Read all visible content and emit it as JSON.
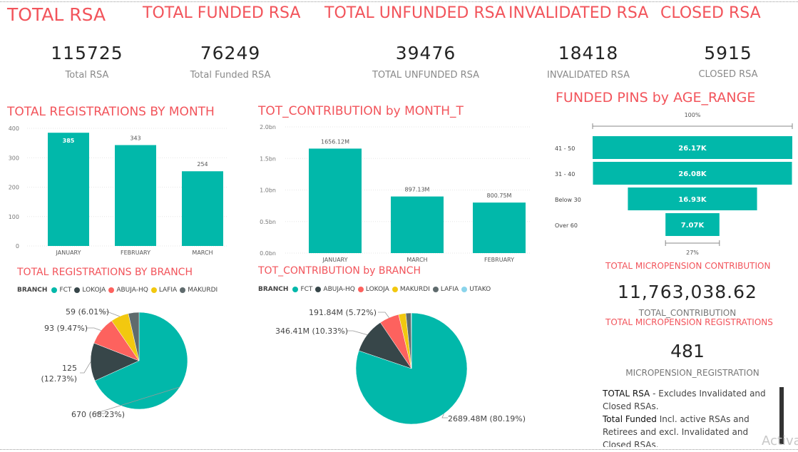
{
  "headers": {
    "total_rsa": "TOTAL RSA",
    "total_funded": "TOTAL FUNDED RSA",
    "total_unfunded": "TOTAL UNFUNDED RSA",
    "invalidated": "INVALIDATED RSA",
    "closed": "CLOSED RSA"
  },
  "kpis": [
    {
      "value": "115725",
      "label": "Total RSA"
    },
    {
      "value": "76249",
      "label": "Total Funded RSA"
    },
    {
      "value": "39476",
      "label": "TOTAL UNFUNDED RSA"
    },
    {
      "value": "18418",
      "label": "INVALIDATED RSA"
    },
    {
      "value": "5915",
      "label": "CLOSED RSA"
    }
  ],
  "micro": {
    "contribution_title": "TOTAL MICROPENSION CONTRIBUTION",
    "contribution_value": "11,763,038.62",
    "contribution_label": "TOTAL_CONTRIBUTION",
    "registrations_title": "TOTAL MICROPENSION REGISTRATIONS",
    "registrations_value": "481",
    "registrations_label": "MICROPENSION_REGISTRATION"
  },
  "notes": {
    "n1_bold": "TOTAL RSA",
    "n1_text": " - Excludes Invalidated and Closed RSAs.",
    "n2_bold": "Total Funded",
    "n2_text": " Incl. active RSAs and Retirees and excl.  Invalidated and Closed RSAs."
  },
  "watermark": "Activa",
  "colors": {
    "teal": "#01b8aa",
    "dark": "#374649",
    "red": "#fd625e",
    "yellow": "#f2c80f",
    "gray": "#5f6b6d",
    "lightblue": "#8ad4eb",
    "title": "#f2545b"
  },
  "chart_data": [
    {
      "type": "bar",
      "title": "TOTAL REGISTRATIONS BY MONTH",
      "categories": [
        "JANUARY",
        "FEBRUARY",
        "MARCH"
      ],
      "values": [
        385,
        343,
        254
      ],
      "data_labels": [
        "385",
        "343",
        "254"
      ],
      "yticks": [
        "0",
        "100",
        "200",
        "300",
        "400"
      ],
      "ylim": [
        0,
        400
      ],
      "grid": true
    },
    {
      "type": "bar",
      "title": "TOT_CONTRIBUTION by MONTH_T",
      "categories": [
        "JANUARY",
        "MARCH",
        "FEBRUARY"
      ],
      "values": [
        1656.12,
        897.13,
        800.75
      ],
      "data_labels": [
        "1656.12M",
        "897.13M",
        "800.75M"
      ],
      "yticks": [
        "0.0bn",
        "0.5bn",
        "1.0bn",
        "1.5bn",
        "2.0bn"
      ],
      "ylim": [
        0,
        2000
      ],
      "grid": true
    },
    {
      "type": "bar",
      "orientation": "funnel",
      "title": "FUNDED PINS  by AGE_RANGE",
      "categories": [
        "41 - 50",
        "31 - 40",
        "Below 30",
        "Over 60"
      ],
      "values": [
        26.17,
        26.08,
        16.93,
        7.07
      ],
      "data_labels": [
        "26.17K",
        "26.08K",
        "16.93K",
        "7.07K"
      ],
      "top_label": "100%",
      "bottom_label": "27%"
    },
    {
      "type": "pie",
      "title": "TOTAL REGISTRATIONS BY BRANCH",
      "legend_title": "BRANCH",
      "legend": [
        "FCT",
        "LOKOJA",
        "ABUJA-HQ",
        "LAFIA",
        "MAKURDI"
      ],
      "legend_colors": [
        "#01b8aa",
        "#374649",
        "#fd625e",
        "#f2c80f",
        "#5f6b6d"
      ],
      "slices": [
        {
          "name": "FCT",
          "value": 670,
          "label": "670 (68.23%)",
          "color": "#01b8aa"
        },
        {
          "name": "LOKOJA",
          "value": 125,
          "label": "125 (12.73%)",
          "color": "#374649"
        },
        {
          "name": "ABUJA-HQ",
          "value": 93,
          "label": "93 (9.47%)",
          "color": "#fd625e"
        },
        {
          "name": "LAFIA",
          "value": 59,
          "label": "59 (6.01%)",
          "color": "#f2c80f"
        },
        {
          "name": "MAKURDI",
          "value": 35,
          "label": "",
          "color": "#5f6b6d"
        }
      ]
    },
    {
      "type": "pie",
      "title": "TOT_CONTRIBUTION by BRANCH",
      "legend_title": "BRANCH",
      "legend": [
        "FCT",
        "ABUJA-HQ",
        "LOKOJA",
        "MAKURDI",
        "LAFIA",
        "UTAKO"
      ],
      "legend_colors": [
        "#01b8aa",
        "#374649",
        "#fd625e",
        "#f2c80f",
        "#5f6b6d",
        "#8ad4eb"
      ],
      "slices": [
        {
          "name": "FCT",
          "value": 2689.48,
          "label": "2689.48M (80.19%)",
          "color": "#01b8aa"
        },
        {
          "name": "ABUJA-HQ",
          "value": 346.41,
          "label": "346.41M (10.33%)",
          "color": "#374649"
        },
        {
          "name": "LOKOJA",
          "value": 191.84,
          "label": "191.84M (5.72%)",
          "color": "#fd625e"
        },
        {
          "name": "MAKURDI",
          "value": 70,
          "label": "",
          "color": "#f2c80f"
        },
        {
          "name": "LAFIA",
          "value": 52,
          "label": "",
          "color": "#5f6b6d"
        },
        {
          "name": "UTAKO",
          "value": 3,
          "label": "",
          "color": "#8ad4eb"
        }
      ]
    }
  ]
}
